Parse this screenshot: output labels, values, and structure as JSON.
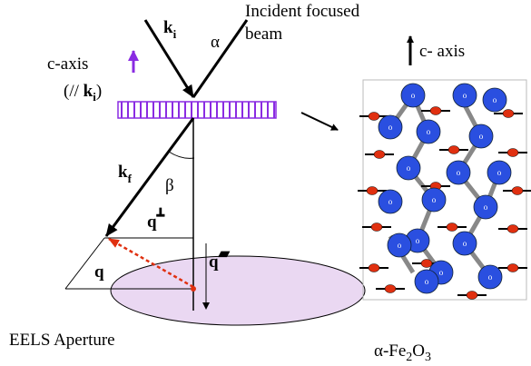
{
  "incident": {
    "k": "k",
    "k_sub": "i",
    "angle": "α",
    "beam_line1": "Incident focused",
    "beam_line2": "beam"
  },
  "c_axis_left": {
    "label": "c-axis",
    "note_open": "(// ",
    "note_k": "k",
    "note_sub": "i",
    "note_close": ")"
  },
  "scattered": {
    "k": "k",
    "k_sub": "f",
    "angle": "β"
  },
  "q_perp": {
    "q": "q",
    "symbol": "┻"
  },
  "q_label": "q",
  "q_par": {
    "q": "q",
    "symbol": "▰"
  },
  "aperture": "EELS Aperture",
  "crystal": {
    "c_axis": "c- axis",
    "atom_label": "o",
    "formula_alpha": "α-Fe",
    "formula_sub1": "2",
    "formula_o": "O",
    "formula_sub2": "3"
  }
}
